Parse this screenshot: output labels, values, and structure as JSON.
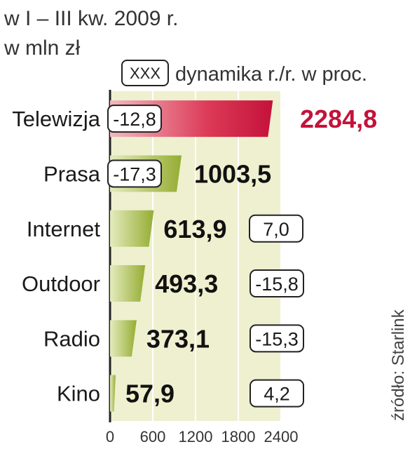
{
  "header": {
    "subtitle_line1": "w I – III kw. 2009 r.",
    "subtitle_line2": "w mln zł"
  },
  "legend": {
    "box_label": "XXX",
    "text": "dynamika r./r. w proc."
  },
  "source": "źródło: Starlink",
  "colors": {
    "highlight": "#c4123a",
    "bar_green": "#9bb53b",
    "panel": "#eef0cf"
  },
  "chart_data": {
    "type": "bar",
    "orientation": "horizontal",
    "categories": [
      "Telewizja",
      "Prasa",
      "Internet",
      "Outdoor",
      "Radio",
      "Kino"
    ],
    "values": [
      2284.8,
      1003.5,
      613.9,
      493.3,
      373.1,
      57.9
    ],
    "value_labels": [
      "2284,8",
      "1003,5",
      "613,9",
      "493,3",
      "373,1",
      "57,9"
    ],
    "change_labels": [
      "-12,8",
      "-17,3",
      "7,0",
      "-15,8",
      "-15,3",
      "4,2"
    ],
    "xlim": [
      0,
      2400
    ],
    "xticks": [
      0,
      600,
      1200,
      1800,
      2400
    ],
    "xtick_labels": [
      "0",
      "600",
      "1200",
      "1800",
      "2400"
    ],
    "grid": true,
    "highlight_index": 0
  }
}
